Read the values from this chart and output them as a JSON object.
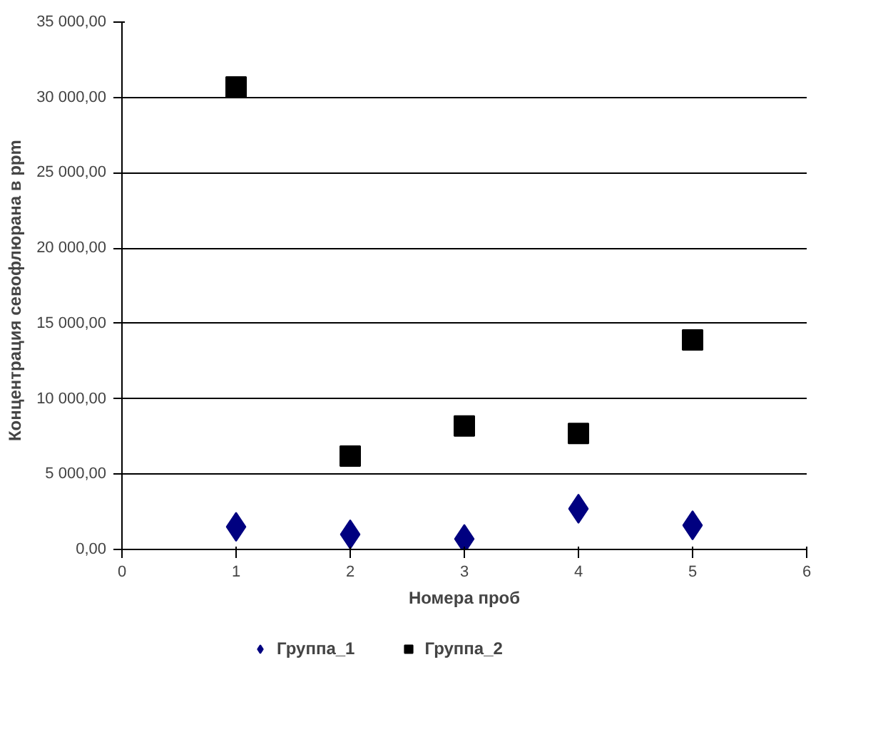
{
  "chart_data": {
    "type": "scatter",
    "xlabel": "Номера проб",
    "ylabel": "Концентрация  севофлюрана  в ppm",
    "xlim": [
      0,
      6
    ],
    "xticks": [
      0,
      1,
      2,
      3,
      4,
      5,
      6
    ],
    "ylim": [
      0,
      35000
    ],
    "yticks": [
      {
        "value": 0,
        "label": "0,00"
      },
      {
        "value": 5000,
        "label": "5 000,00"
      },
      {
        "value": 10000,
        "label": "10 000,00"
      },
      {
        "value": 15000,
        "label": "15 000,00"
      },
      {
        "value": 20000,
        "label": "20 000,00"
      },
      {
        "value": 25000,
        "label": "25 000,00"
      },
      {
        "value": 30000,
        "label": "30 000,00"
      },
      {
        "value": 35000,
        "label": "35 000,00"
      }
    ],
    "grid": "y",
    "legend": "bottom",
    "x": [
      1,
      2,
      3,
      4,
      5
    ],
    "series": [
      {
        "name": "Группа_1",
        "color": "#000080",
        "marker": "diamond",
        "values": [
          1500,
          1000,
          700,
          2700,
          1600
        ]
      },
      {
        "name": "Группа_2",
        "color": "#000000",
        "marker": "square",
        "values": [
          30700,
          6200,
          8200,
          7700,
          13900
        ]
      }
    ]
  }
}
